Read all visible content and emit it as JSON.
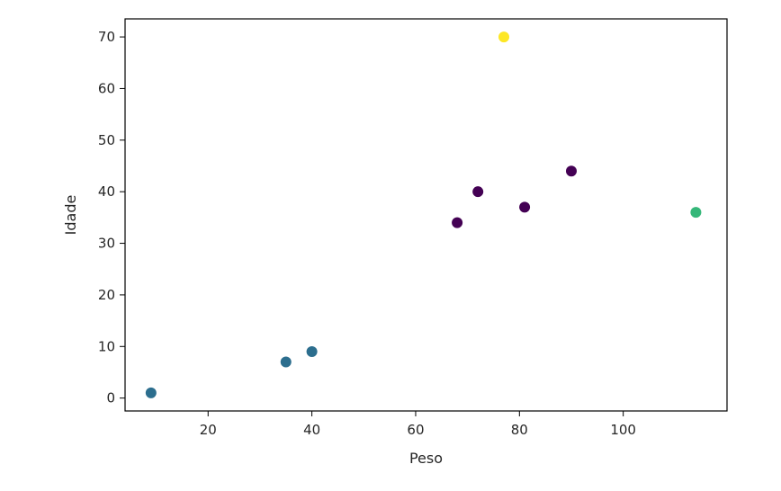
{
  "chart_data": {
    "type": "scatter",
    "xlabel": "Peso",
    "ylabel": "Idade",
    "xlim": [
      4,
      120
    ],
    "ylim": [
      -2.5,
      73.5
    ],
    "xticks": [
      20,
      40,
      60,
      80,
      100
    ],
    "yticks": [
      0,
      10,
      20,
      30,
      40,
      50,
      60,
      70
    ],
    "grid": false,
    "points": [
      {
        "x": 9,
        "y": 1,
        "color": "#2c6e8e"
      },
      {
        "x": 35,
        "y": 7,
        "color": "#2c6e8e"
      },
      {
        "x": 40,
        "y": 9,
        "color": "#2c6e8e"
      },
      {
        "x": 68,
        "y": 34,
        "color": "#440154"
      },
      {
        "x": 72,
        "y": 40,
        "color": "#440154"
      },
      {
        "x": 81,
        "y": 37,
        "color": "#440154"
      },
      {
        "x": 90,
        "y": 44,
        "color": "#440154"
      },
      {
        "x": 77,
        "y": 70,
        "color": "#fde725"
      },
      {
        "x": 114,
        "y": 36,
        "color": "#35b779"
      }
    ]
  }
}
